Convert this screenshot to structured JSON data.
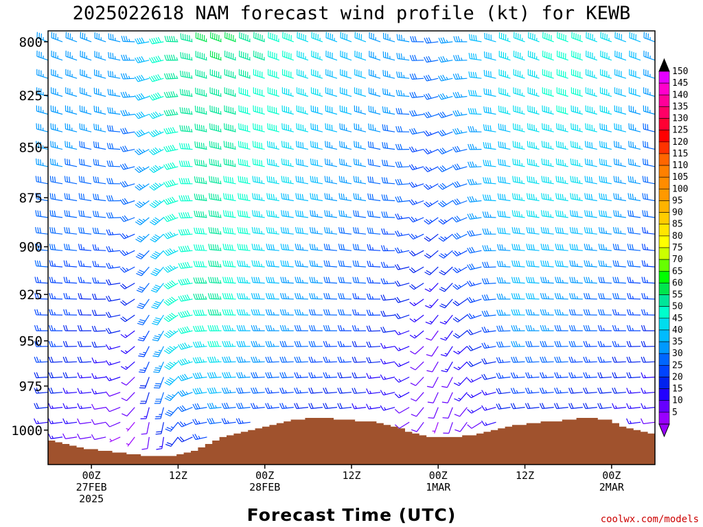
{
  "chart_data": {
    "type": "wind-barb time-height profile",
    "title": "2025022618 NAM forecast wind profile (kt) for KEWB",
    "xlabel": "Forecast Time (UTC)",
    "ylabel": "",
    "y_scale": "pressure (log, inverted)",
    "ylim": [
      1020,
      795
    ],
    "y_ticks": [
      800,
      825,
      850,
      875,
      900,
      925,
      950,
      975,
      1000
    ],
    "x_range_hours": [
      0,
      84
    ],
    "x_hours_of_columns": "0..84 hourly from 2025-02-26 18Z",
    "x_ticks": [
      {
        "hour": 6,
        "l1": "00Z",
        "l2": "27FEB",
        "l3": "2025"
      },
      {
        "hour": 18,
        "l1": "12Z",
        "l2": "",
        "l3": ""
      },
      {
        "hour": 30,
        "l1": "00Z",
        "l2": "28FEB",
        "l3": ""
      },
      {
        "hour": 42,
        "l1": "12Z",
        "l2": "",
        "l3": ""
      },
      {
        "hour": 54,
        "l1": "00Z",
        "l2": "1MAR",
        "l3": ""
      },
      {
        "hour": 66,
        "l1": "12Z",
        "l2": "",
        "l3": ""
      },
      {
        "hour": 78,
        "l1": "00Z",
        "l2": "2MAR",
        "l3": ""
      }
    ],
    "surface_pressure_hPa": [
      1006,
      1007,
      1008,
      1009,
      1010,
      1011,
      1011,
      1012,
      1012,
      1013,
      1013,
      1014,
      1014,
      1015,
      1015,
      1015,
      1015,
      1015,
      1014,
      1013,
      1012,
      1010,
      1008,
      1006,
      1004,
      1003,
      1002,
      1001,
      1000,
      999,
      998,
      997,
      996,
      995,
      994,
      994,
      993,
      993,
      993,
      993,
      994,
      994,
      994,
      995,
      995,
      995,
      996,
      997,
      998,
      999,
      1001,
      1002,
      1003,
      1004,
      1004,
      1004,
      1004,
      1004,
      1003,
      1003,
      1002,
      1001,
      1000,
      999,
      998,
      997,
      997,
      996,
      996,
      995,
      995,
      995,
      994,
      994,
      993,
      993,
      993,
      994,
      994,
      996,
      998,
      999,
      1000,
      1001,
      1002
    ],
    "wind_speed_kt_at_levels": {
      "pressure_levels": [
        800,
        825,
        850,
        875,
        900,
        925,
        950,
        975,
        1000
      ],
      "columns_hours": [
        0,
        12,
        18,
        24,
        30,
        42,
        54,
        60,
        66,
        72,
        78,
        84
      ],
      "speed": [
        [
          35,
          35,
          55,
          60,
          55,
          40,
          30,
          40,
          45,
          50,
          45,
          35
        ],
        [
          35,
          35,
          55,
          55,
          50,
          40,
          30,
          40,
          45,
          50,
          45,
          35
        ],
        [
          35,
          30,
          50,
          55,
          50,
          35,
          25,
          35,
          45,
          45,
          40,
          30
        ],
        [
          30,
          30,
          50,
          55,
          45,
          35,
          25,
          35,
          45,
          45,
          40,
          30
        ],
        [
          30,
          25,
          45,
          55,
          45,
          30,
          20,
          30,
          40,
          40,
          35,
          25
        ],
        [
          25,
          20,
          50,
          55,
          40,
          30,
          15,
          25,
          40,
          35,
          30,
          25
        ],
        [
          25,
          15,
          45,
          50,
          35,
          25,
          10,
          20,
          35,
          30,
          25,
          20
        ],
        [
          20,
          10,
          40,
          40,
          30,
          20,
          10,
          15,
          25,
          25,
          20,
          15
        ],
        [
          15,
          5,
          20,
          25,
          20,
          15,
          5,
          10,
          15,
          15,
          15,
          10
        ]
      ]
    }
  },
  "colorbar": {
    "labels": [
      "150",
      "145",
      "140",
      "135",
      "130",
      "125",
      "120",
      "115",
      "110",
      "105",
      "100",
      "95",
      "90",
      "85",
      "80",
      "75",
      "70",
      "65",
      "60",
      "55",
      "50",
      "45",
      "40",
      "35",
      "30",
      "25",
      "20",
      "15",
      "10",
      "5"
    ],
    "colors": [
      "#e400ff",
      "#ff00cc",
      "#ff0099",
      "#ff0066",
      "#ff0033",
      "#ff0000",
      "#ff3300",
      "#ff6600",
      "#ff8000",
      "#ff8c00",
      "#ff9900",
      "#ffb300",
      "#ffcc00",
      "#ffe600",
      "#ffff00",
      "#ccff00",
      "#66ff00",
      "#00ff00",
      "#00e64d",
      "#00e699",
      "#00ffcc",
      "#00ddee",
      "#00bbff",
      "#0099ff",
      "#0066ff",
      "#0044ff",
      "#0022ee",
      "#2200ff",
      "#6600ff",
      "#9900ff"
    ]
  },
  "credit": "coolwx.com/models",
  "colors": {
    "ground": "#a0522d",
    "credit": "#cc0000"
  }
}
